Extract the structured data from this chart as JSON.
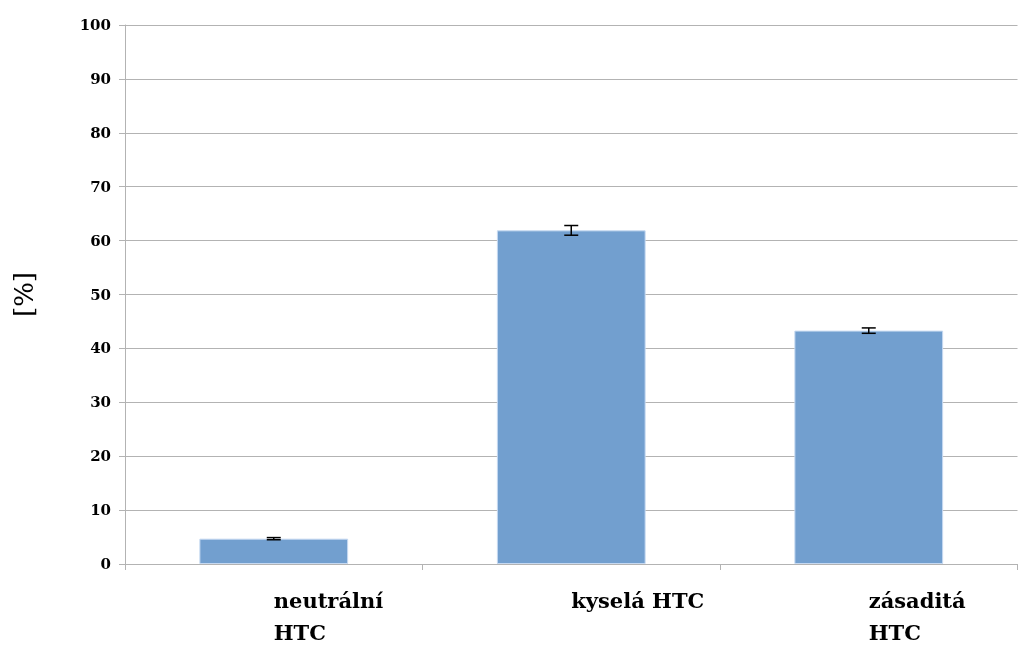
{
  "chart_data": {
    "type": "bar",
    "ylabel": "[%]",
    "categories": [
      "neutrální HTC",
      "kyselá HTC",
      "zásaditá HTC"
    ],
    "values": [
      4.7,
      61.9,
      43.3
    ],
    "errors": [
      0.2,
      0.9,
      0.5
    ],
    "color": "#729fcf",
    "ylim": [
      0,
      100
    ],
    "yticks": [
      0,
      10,
      20,
      30,
      40,
      50,
      60,
      70,
      80,
      90,
      100
    ],
    "grid": "y"
  }
}
